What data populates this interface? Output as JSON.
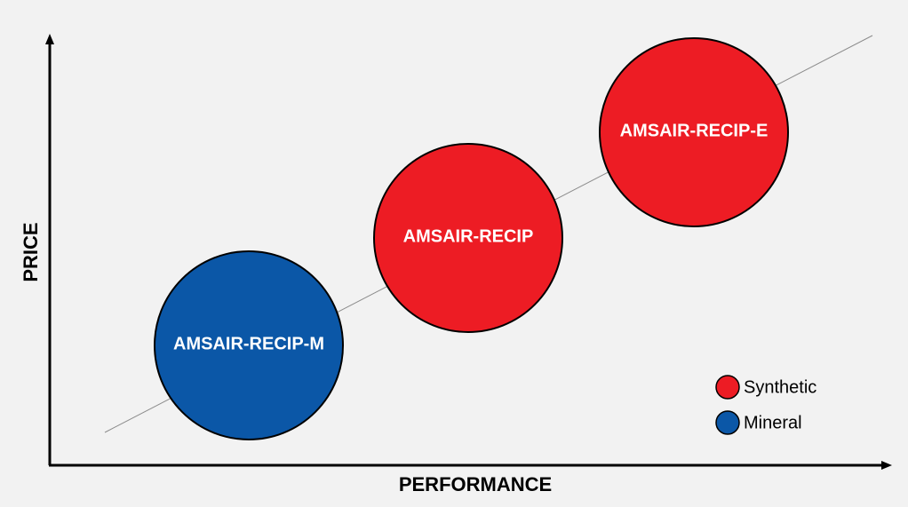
{
  "axes": {
    "y_label": "PRICE",
    "x_label": "PERFORMANCE"
  },
  "nodes": [
    {
      "label": "AMSAIR-RECIP-M",
      "color": "#0b57a7"
    },
    {
      "label": "AMSAIR-RECIP",
      "color": "#ed1c24"
    },
    {
      "label": "AMSAIR-RECIP-E",
      "color": "#ed1c24"
    }
  ],
  "legend": [
    {
      "label": "Synthetic",
      "color": "#ed1c24"
    },
    {
      "label": "Mineral",
      "color": "#0b57a7"
    }
  ]
}
